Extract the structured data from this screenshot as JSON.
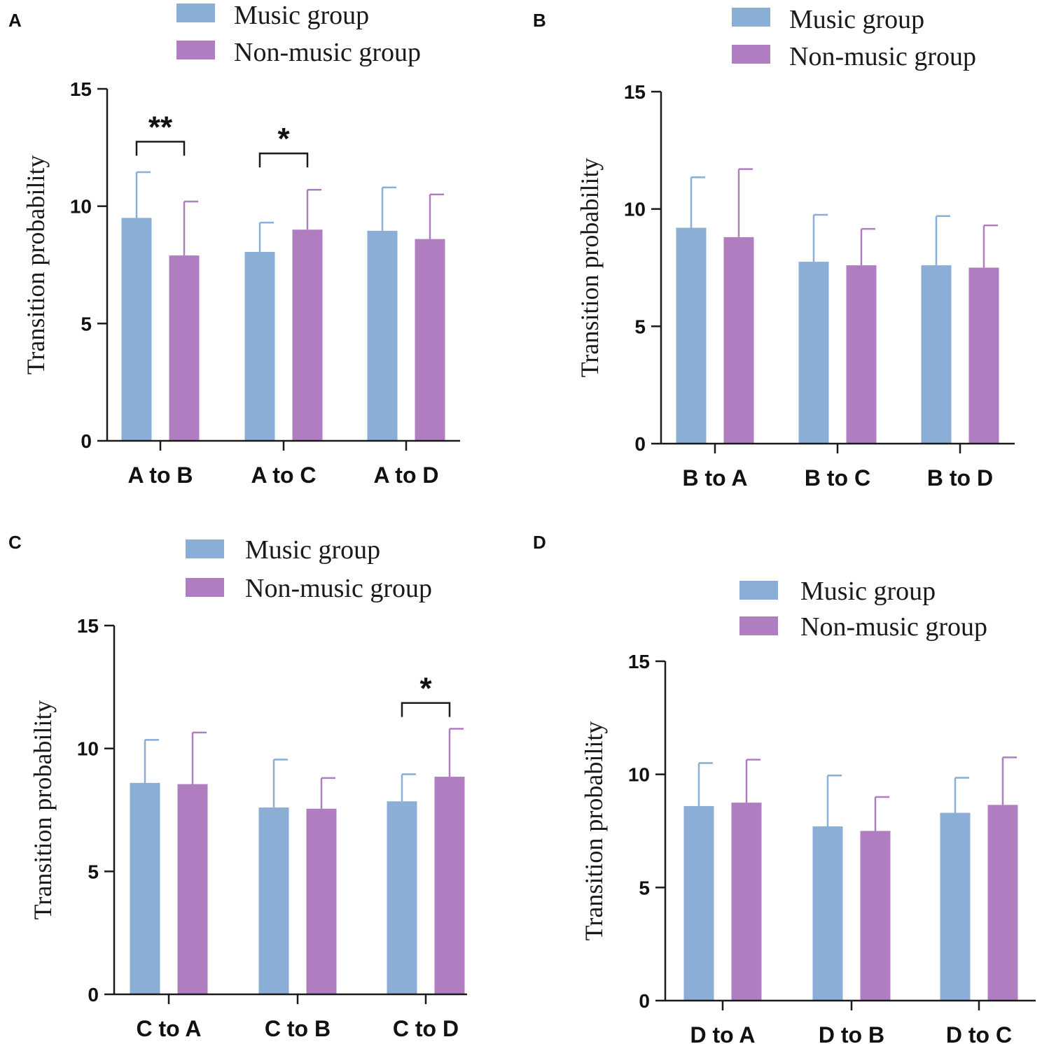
{
  "colors": {
    "music": "#8aaed5",
    "music_err": "#8aaed5",
    "nonmusic": "#b07ec0",
    "nonmusic_err": "#b07ec0",
    "axis": "#1a1a1a"
  },
  "legend": {
    "music": "Music group",
    "nonmusic": "Non-music group"
  },
  "chart_data": [
    {
      "type": "bar",
      "panel": "A",
      "ylabel": "Transition probability",
      "ylim": [
        0,
        15
      ],
      "yticks": [
        "0",
        "5",
        "10",
        "15"
      ],
      "categories": [
        "A to B",
        "A to C",
        "A to D"
      ],
      "series": [
        {
          "name": "Music group",
          "values": [
            9.5,
            8.05,
            8.95
          ],
          "errors": [
            1.95,
            1.25,
            1.85
          ]
        },
        {
          "name": "Non-music group",
          "values": [
            7.9,
            9.0,
            8.6
          ],
          "errors": [
            2.3,
            1.7,
            1.9
          ]
        }
      ],
      "annotations": [
        {
          "category": 0,
          "label": "**",
          "bracket_y": 12.75
        },
        {
          "category": 1,
          "label": "*",
          "bracket_y": 12.25
        }
      ]
    },
    {
      "type": "bar",
      "panel": "B",
      "ylabel": "Transition probability",
      "ylim": [
        0,
        15
      ],
      "yticks": [
        "0",
        "5",
        "10",
        "15"
      ],
      "categories": [
        "B to A",
        "B to C",
        "B to D"
      ],
      "series": [
        {
          "name": "Music group",
          "values": [
            9.2,
            7.75,
            7.6
          ],
          "errors": [
            2.15,
            2.0,
            2.1
          ]
        },
        {
          "name": "Non-music group",
          "values": [
            8.8,
            7.6,
            7.5
          ],
          "errors": [
            2.9,
            1.55,
            1.8
          ]
        }
      ],
      "annotations": []
    },
    {
      "type": "bar",
      "panel": "C",
      "ylabel": "Transition probability",
      "ylim": [
        0,
        15
      ],
      "yticks": [
        "0",
        "5",
        "10",
        "15"
      ],
      "categories": [
        "C to A",
        "C to B",
        "C to D"
      ],
      "series": [
        {
          "name": "Music group",
          "values": [
            8.6,
            7.6,
            7.85
          ],
          "errors": [
            1.75,
            1.95,
            1.1
          ]
        },
        {
          "name": "Non-music group",
          "values": [
            8.55,
            7.55,
            8.85
          ],
          "errors": [
            2.1,
            1.25,
            1.95
          ]
        }
      ],
      "annotations": [
        {
          "category": 2,
          "label": "*",
          "bracket_y": 11.85
        }
      ]
    },
    {
      "type": "bar",
      "panel": "D",
      "ylabel": "Transition probability",
      "ylim": [
        0,
        15
      ],
      "yticks": [
        "0",
        "5",
        "10",
        "15"
      ],
      "categories": [
        "D to A",
        "D to B",
        "D to C"
      ],
      "series": [
        {
          "name": "Music group",
          "values": [
            8.6,
            7.7,
            8.3
          ],
          "errors": [
            1.9,
            2.25,
            1.55
          ]
        },
        {
          "name": "Non-music group",
          "values": [
            8.75,
            7.5,
            8.65
          ],
          "errors": [
            1.9,
            1.5,
            2.1
          ]
        }
      ],
      "annotations": []
    }
  ]
}
